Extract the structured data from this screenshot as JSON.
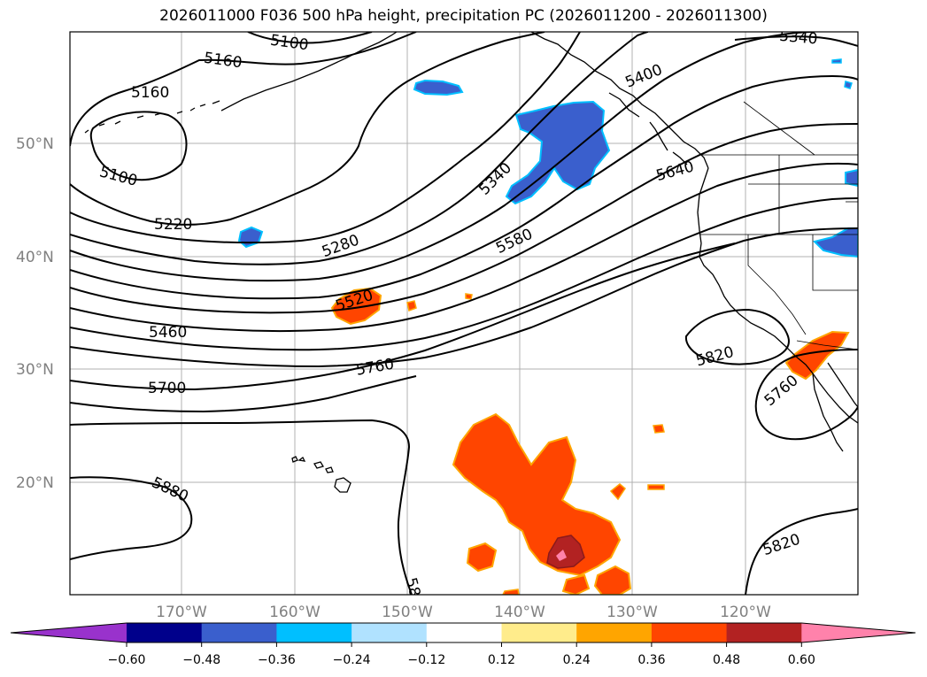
{
  "title": "2026011000 F036 500 hPa height, precipitation PC (2026011200 - 2026011300)",
  "lat_labels": [
    "50°N",
    "40°N",
    "30°N",
    "20°N"
  ],
  "lon_labels": [
    "170°W",
    "160°W",
    "150°W",
    "140°W",
    "130°W",
    "120°W"
  ],
  "contour_labels": {
    "l5100a": "5100",
    "l5160a": "5160",
    "l5160b": "5160",
    "l5100b": "5100",
    "l5220": "5220",
    "l5280": "5280",
    "l5340": "5340",
    "l5400": "5400",
    "l5340ne": "5340",
    "l5520": "5520",
    "l5580": "5580",
    "l5640": "5640",
    "l5460": "5460",
    "l5700": "5700",
    "l5760a": "5760",
    "l5760b": "5760",
    "l5820a": "5820",
    "l5820b": "5820",
    "l5880": "5880",
    "l58b": "58"
  },
  "colorbar": {
    "colors": [
      "#9932cc",
      "#00008b",
      "#3a5fcd",
      "#00bfff",
      "#b0e2ff",
      "#ffffff",
      "#ffec8b",
      "#ffa500",
      "#ff4500",
      "#b22222",
      "#ff82ab"
    ],
    "ticks": [
      "−0.60",
      "−0.48",
      "−0.36",
      "−0.24",
      "−0.12",
      "0.12",
      "0.24",
      "0.36",
      "0.48",
      "0.60"
    ]
  }
}
